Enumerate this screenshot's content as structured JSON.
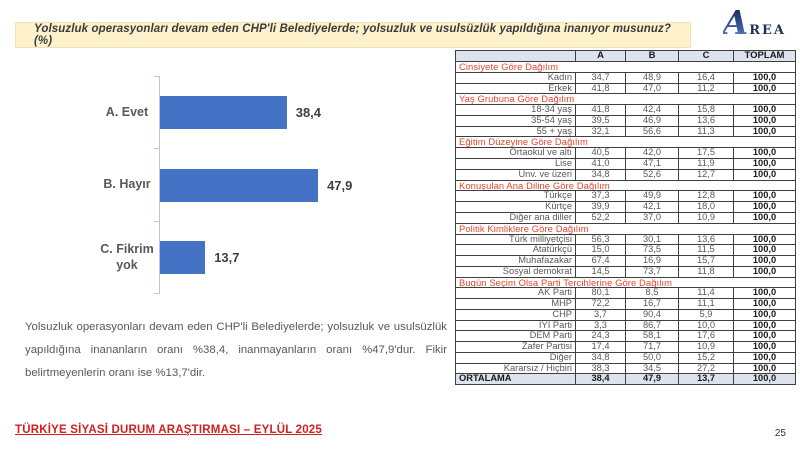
{
  "title": "Yolsuzluk operasyonları devam eden CHP'li Belediyelerde; yolsuzluk ve usulsüzlük yapıldığına inanıyor musunuz? (%)",
  "logo": {
    "a": "A",
    "rest": "REA"
  },
  "chart_data": {
    "type": "bar",
    "orientation": "horizontal",
    "categories": [
      "A. Evet",
      "B. Hayır",
      "C. Fikrim yok"
    ],
    "values": [
      38.4,
      47.9,
      13.7
    ],
    "value_labels": [
      "38,4",
      "47,9",
      "13,7"
    ],
    "xlim": [
      0,
      52
    ],
    "bar_color": "#4472C4",
    "grid": false,
    "legend": false,
    "title": "",
    "xlabel": "",
    "ylabel": ""
  },
  "summary": "Yolsuzluk operasyonları devam eden CHP'li Belediyelerde; yolsuzluk ve usulsüzlük yapıldığına inananların oranı %38,4, inanmayanların oranı %47,9'dur. Fikir belirtmeyenlerin oranı ise %13,7'dir.",
  "table": {
    "columns": [
      "",
      "A",
      "B",
      "C",
      "TOPLAM"
    ],
    "sections": [
      {
        "header": "Cinsiyete Göre Dağılım",
        "rows": [
          {
            "label": "Kadın",
            "values": [
              "34,7",
              "48,9",
              "16,4",
              "100,0"
            ]
          },
          {
            "label": "Erkek",
            "values": [
              "41,8",
              "47,0",
              "11,2",
              "100,0"
            ]
          }
        ]
      },
      {
        "header": "Yaş Grubuna Göre Dağılım",
        "rows": [
          {
            "label": "18-34 yaş",
            "values": [
              "41,8",
              "42,4",
              "15,8",
              "100,0"
            ]
          },
          {
            "label": "35-54 yaş",
            "values": [
              "39,5",
              "46,9",
              "13,6",
              "100,0"
            ]
          },
          {
            "label": "55 + yaş",
            "values": [
              "32,1",
              "56,6",
              "11,3",
              "100,0"
            ]
          }
        ]
      },
      {
        "header": "Eğitim Düzeyine Göre Dağılım",
        "rows": [
          {
            "label": "Ortaokul ve altı",
            "values": [
              "40,5",
              "42,0",
              "17,5",
              "100,0"
            ]
          },
          {
            "label": "Lise",
            "values": [
              "41,0",
              "47,1",
              "11,9",
              "100,0"
            ]
          },
          {
            "label": "Ünv. ve üzeri",
            "values": [
              "34,8",
              "52,6",
              "12,7",
              "100,0"
            ]
          }
        ]
      },
      {
        "header": "Konuşulan Ana Diline Göre Dağılım",
        "rows": [
          {
            "label": "Türkçe",
            "values": [
              "37,3",
              "49,9",
              "12,8",
              "100,0"
            ]
          },
          {
            "label": "Kürtçe",
            "values": [
              "39,9",
              "42,1",
              "18,0",
              "100,0"
            ]
          },
          {
            "label": "Diğer ana diller",
            "values": [
              "52,2",
              "37,0",
              "10,9",
              "100,0"
            ]
          }
        ]
      },
      {
        "header": "Politik Kimliklere Göre Dağılım",
        "rows": [
          {
            "label": "Türk milliyetçisi",
            "values": [
              "56,3",
              "30,1",
              "13,6",
              "100,0"
            ]
          },
          {
            "label": "Atatürkçü",
            "values": [
              "15,0",
              "73,5",
              "11,5",
              "100,0"
            ]
          },
          {
            "label": "Muhafazakar",
            "values": [
              "67,4",
              "16,9",
              "15,7",
              "100,0"
            ]
          },
          {
            "label": "Sosyal demokrat",
            "values": [
              "14,5",
              "73,7",
              "11,8",
              "100,0"
            ]
          }
        ]
      },
      {
        "header": "Bugün Seçim Olsa Parti Tercihlerine Göre Dağılım",
        "rows": [
          {
            "label": "AK Parti",
            "values": [
              "80,1",
              "8,5",
              "11,4",
              "100,0"
            ]
          },
          {
            "label": "MHP",
            "values": [
              "72,2",
              "16,7",
              "11,1",
              "100,0"
            ]
          },
          {
            "label": "CHP",
            "values": [
              "3,7",
              "90,4",
              "5,9",
              "100,0"
            ]
          },
          {
            "label": "İYİ Parti",
            "values": [
              "3,3",
              "86,7",
              "10,0",
              "100,0"
            ]
          },
          {
            "label": "DEM Parti",
            "values": [
              "24,3",
              "58,1",
              "17,6",
              "100,0"
            ]
          },
          {
            "label": "Zafer Partisi",
            "values": [
              "17,4",
              "71,7",
              "10,9",
              "100,0"
            ]
          },
          {
            "label": "Diğer",
            "values": [
              "34,8",
              "50,0",
              "15,2",
              "100,0"
            ]
          },
          {
            "label": "Kararsız / Hiçbiri",
            "values": [
              "38,3",
              "34,5",
              "27,2",
              "100,0"
            ]
          }
        ]
      }
    ],
    "footer_row": {
      "label": "ORTALAMA",
      "values": [
        "38,4",
        "47,9",
        "13,7",
        "100,0"
      ]
    }
  },
  "footer": {
    "title": "TÜRKİYE SİYASİ DURUM ARAŞTIRMASI – EYLÜL 2025",
    "page_number": "25"
  },
  "colors": {
    "bar": "#4472C4",
    "title_bg": "#FDF2CC",
    "table_header_bg": "#DCE3ED",
    "group_header_text": "#E8432C",
    "footer_text": "#D02020",
    "logo_navy": "#24417E"
  }
}
